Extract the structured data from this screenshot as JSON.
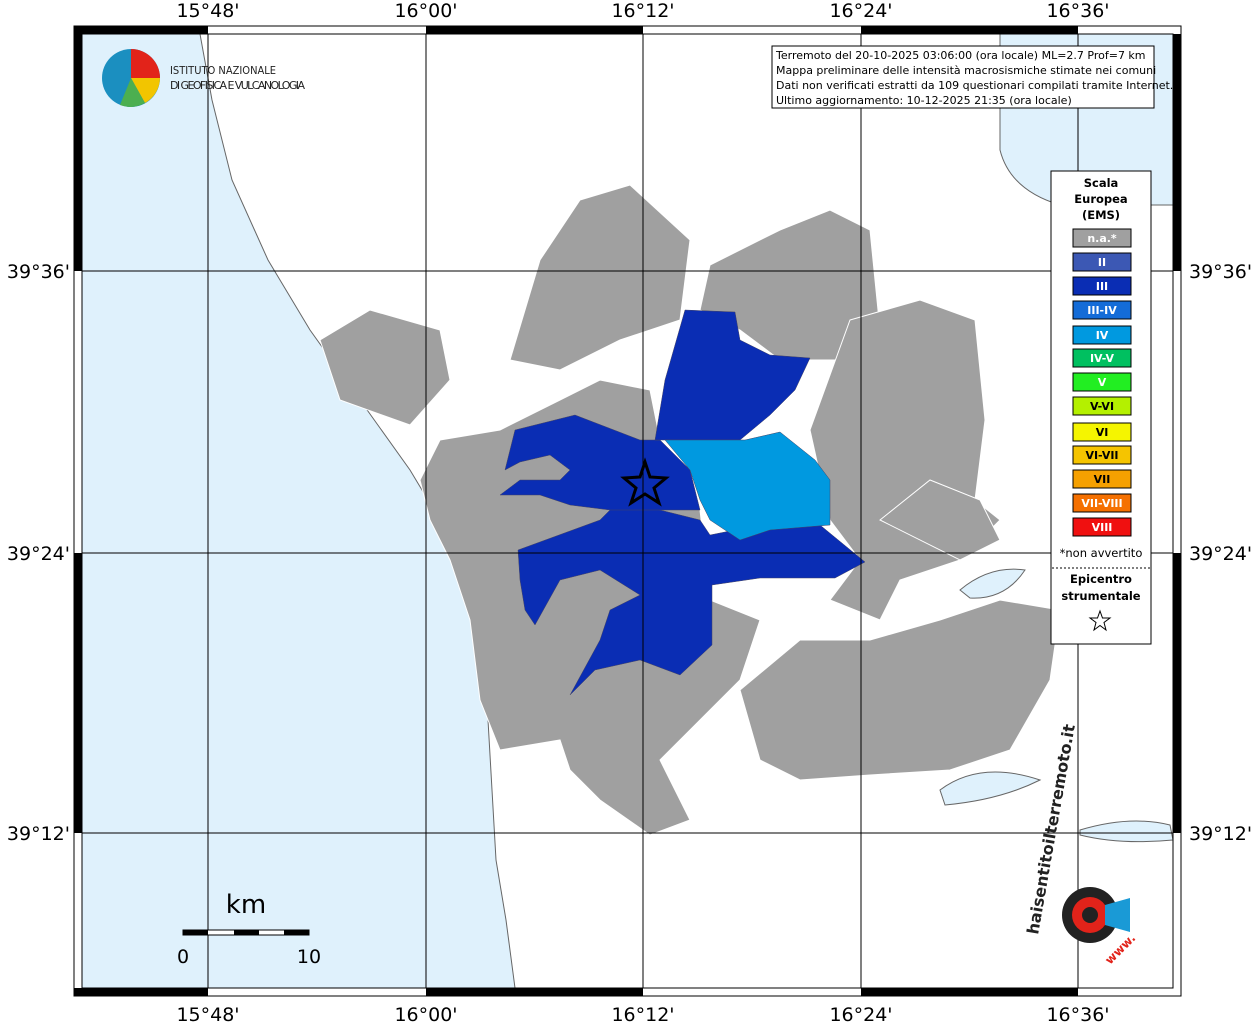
{
  "header": {
    "institute": [
      "ISTITUTO NAZIONALE",
      "DI GEOFISICA E VULCANOLOGIA"
    ]
  },
  "info": [
    "Terremoto del 20-10-2025 03:06:00 (ora locale) ML=2.7 Prof=7 km",
    "Mappa preliminare delle intensità macrosismiche stimate nei comuni",
    "Dati non verificati estratti da 109 questionari compilati tramite Internet.",
    "Ultimo aggiornamento: 10-12-2025 21:35 (ora locale)"
  ],
  "longitude_labels": [
    "15°48'",
    "16°00'",
    "16°12'",
    "16°24'",
    "16°36'"
  ],
  "latitude_labels": [
    "39°36'",
    "39°24'",
    "39°12'"
  ],
  "legend": {
    "title": [
      "Scala",
      "Europea",
      "(EMS)"
    ],
    "items": [
      {
        "label": "n.a.*",
        "color": "#a0a0a0"
      },
      {
        "label": "II",
        "color": "#3c58b4"
      },
      {
        "label": "III",
        "color": "#0a2db4"
      },
      {
        "label": "III-IV",
        "color": "#146cd8"
      },
      {
        "label": "IV",
        "color": "#0099e0"
      },
      {
        "label": "IV-V",
        "color": "#00c060"
      },
      {
        "label": "V",
        "color": "#22ee22"
      },
      {
        "label": "V-VI",
        "color": "#b4f000"
      },
      {
        "label": "VI",
        "color": "#f5f500"
      },
      {
        "label": "VI-VII",
        "color": "#f5c400"
      },
      {
        "label": "VII",
        "color": "#f5a000"
      },
      {
        "label": "VII-VIII",
        "color": "#f57000"
      },
      {
        "label": "VIII",
        "color": "#f01010"
      }
    ],
    "note": "*non avvertito",
    "epicenter": [
      "Epicentro",
      "strumentale"
    ]
  },
  "scale_bar": {
    "unit": "km",
    "start": "0",
    "end": "10"
  },
  "logo": {
    "site": "haisentitoilterremoto.it",
    "prefix": "www."
  }
}
